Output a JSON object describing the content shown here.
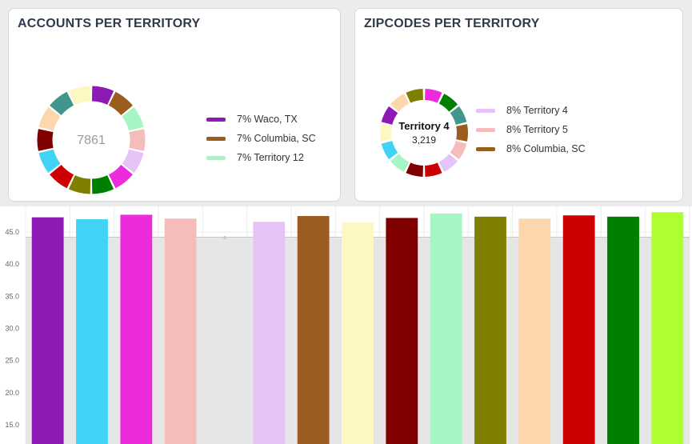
{
  "accounts_panel": {
    "title": "ACCOUNTS PER TERRITORY",
    "center_value": "7861",
    "legend": [
      {
        "label": "7% Waco, TX",
        "color": "#8e1ab6"
      },
      {
        "label": "7% Columbia, SC",
        "color": "#9b5c1f"
      },
      {
        "label": "7% Territory 12",
        "color": "#a6f5c4"
      }
    ]
  },
  "zipcodes_panel": {
    "title": "ZIPCODES PER TERRITORY",
    "center_name": "Territory 4",
    "center_value": "3,219",
    "legend": [
      {
        "label": "8% Territory 4",
        "color": "#e6c3f7"
      },
      {
        "label": "8% Territory 5",
        "color": "#f5bcbc"
      },
      {
        "label": "8% Columbia, SC",
        "color": "#9b5c1f"
      }
    ]
  },
  "donut_colors": {
    "accounts": [
      "#8e1ab6",
      "#9b5c1f",
      "#a6f5c4",
      "#f5bcbc",
      "#e6c3f7",
      "#ed2bdc",
      "#008000",
      "#808000",
      "#cc0000",
      "#41d3f5",
      "#800000",
      "#fdd6ad",
      "#40958c",
      "#fdf7c4"
    ],
    "zipcodes": [
      "#ed2bdc",
      "#008000",
      "#40958c",
      "#9b5c1f",
      "#f5bcbc",
      "#e6c3f7",
      "#cc0000",
      "#800000",
      "#a6f5c4",
      "#41d3f5",
      "#fdf7c4",
      "#8e1ab6",
      "#fdd6ad",
      "#808000"
    ]
  },
  "chart_data": {
    "type": "bar",
    "yticks": [
      "15.0",
      "20.0",
      "25.0",
      "30.0",
      "35.0",
      "40.0",
      "45.0"
    ],
    "ylim": [
      12,
      49
    ],
    "average_line": 44.2,
    "grid": true,
    "bars": [
      {
        "value": 47.3,
        "color": "#8e1ab6"
      },
      {
        "value": 47.0,
        "color": "#41d3f5"
      },
      {
        "value": 47.7,
        "color": "#ed2bdc"
      },
      {
        "value": 47.1,
        "color": "#f5bcbc"
      },
      {
        "value": null,
        "color": "#cccccc"
      },
      {
        "value": 46.6,
        "color": "#e6c3f7"
      },
      {
        "value": 47.5,
        "color": "#9b5c1f"
      },
      {
        "value": 46.5,
        "color": "#fdf7c4"
      },
      {
        "value": 47.2,
        "color": "#800000"
      },
      {
        "value": 47.9,
        "color": "#a6f5c4"
      },
      {
        "value": 47.4,
        "color": "#808000"
      },
      {
        "value": 47.1,
        "color": "#fdd6ad"
      },
      {
        "value": 47.6,
        "color": "#cc0000"
      },
      {
        "value": 47.4,
        "color": "#008000"
      },
      {
        "value": 48.1,
        "color": "#adff2f"
      }
    ]
  }
}
